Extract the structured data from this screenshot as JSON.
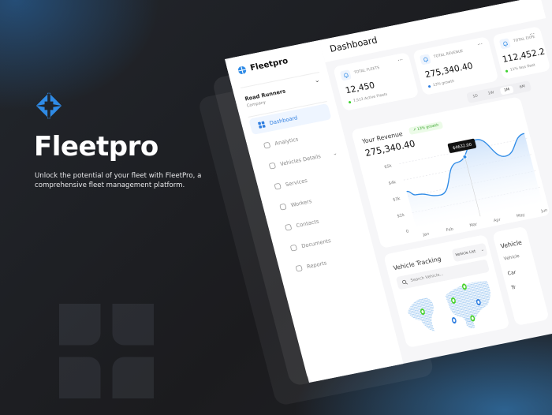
{
  "promo": {
    "title": "Fleetpro",
    "description": "Unlock the potential of your fleet with FleetPro, a comprehensive fleet management platform.",
    "accent": "#2f8be6"
  },
  "sidebar": {
    "brand": "Fleetpro",
    "company_name": "Road Runners",
    "company_sub": "Company",
    "items": [
      {
        "label": "Dashboard",
        "icon": "grid-icon",
        "active": true
      },
      {
        "label": "Analytics",
        "icon": "database-icon"
      },
      {
        "label": "Vehicles Details",
        "icon": "car-icon",
        "expandable": true
      },
      {
        "label": "Services",
        "icon": "wrench-icon"
      },
      {
        "label": "Workers",
        "icon": "users-icon"
      },
      {
        "label": "Contacts",
        "icon": "contacts-icon"
      },
      {
        "label": "Documents",
        "icon": "document-icon"
      },
      {
        "label": "Reports",
        "icon": "report-icon"
      }
    ]
  },
  "header": {
    "title": "Dashboard"
  },
  "stats": [
    {
      "label": "TOTAL FLEETS",
      "value": "12,450",
      "sub": "7,512 Active Fleets",
      "sub_color": "#3bd12d"
    },
    {
      "label": "TOTAL REVENUE",
      "value": "275,340.40",
      "sub": "13% growth",
      "sub_color": "#2f7ee0"
    },
    {
      "label": "TOTAL EXPE",
      "value": "112,452.2",
      "sub": "11% less fleet",
      "sub_color": "#3bd12d"
    }
  ],
  "time_filters": {
    "options": [
      "1D",
      "1W",
      "1M",
      "6M"
    ],
    "selected": "1M"
  },
  "revenue": {
    "title": "Your Revenue",
    "value": "275,340.40",
    "badge": "13% growth",
    "tooltip": "$4632.00"
  },
  "chart_data": {
    "type": "area",
    "categories": [
      "Jan",
      "Feb",
      "Mar",
      "Apr",
      "May",
      "Jun"
    ],
    "values": [
      3000,
      2700,
      4400,
      5500,
      4200,
      5300
    ],
    "y_ticks": [
      "0",
      "$2k",
      "$3k",
      "$4k",
      "$5k"
    ],
    "y_tick_values": [
      0,
      2000,
      3000,
      4000,
      5000
    ],
    "highlight": {
      "between": [
        "Mar",
        "Apr"
      ],
      "value": 4632
    },
    "grid": true,
    "color": "#2f8be6"
  },
  "tracking": {
    "title": "Vehicle Tracking",
    "search_placeholder": "Search Vehicle...",
    "dropdown": "Vehicle List",
    "pins": [
      {
        "color": "#46d12a"
      },
      {
        "color": "#46d12a"
      },
      {
        "color": "#46d12a"
      },
      {
        "color": "#46d12a"
      },
      {
        "color": "#2f7ee0"
      },
      {
        "color": "#2f7ee0"
      }
    ]
  },
  "right_card": {
    "title": "Vehicle",
    "column": "Vehicle",
    "rows": [
      "Car",
      "Tr"
    ]
  }
}
